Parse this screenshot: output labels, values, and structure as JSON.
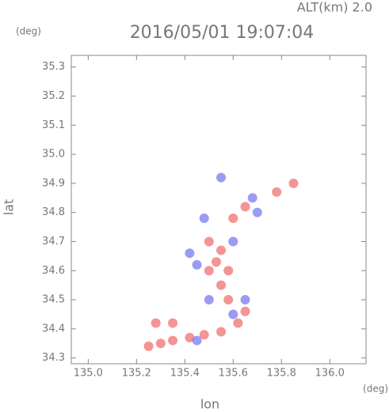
{
  "chart_data": {
    "type": "scatter",
    "title": "2016/05/01 19:07:04",
    "subtitle": "ALT(km) 2.0",
    "x_label": "lon",
    "y_label": "lat",
    "x_unit": "(deg)",
    "y_unit": "(deg)",
    "xlim": [
      134.93,
      136.15
    ],
    "ylim": [
      34.28,
      35.34
    ],
    "xticks": [
      {
        "value": 135,
        "label": "135.0"
      },
      135.2,
      135.4,
      135.6,
      135.8,
      {
        "value": 136,
        "label": "136.0"
      }
    ],
    "yticks": [
      34.3,
      34.4,
      34.5,
      34.6,
      34.7,
      34.8,
      34.9,
      {
        "value": 35,
        "label": "35.0"
      },
      35.1,
      35.2,
      35.3
    ],
    "grid": false,
    "series": [
      {
        "color": "#f07070",
        "x": [
          135.25,
          135.3,
          135.35,
          135.42,
          135.48,
          135.55,
          135.62,
          135.65,
          135.58,
          135.55,
          135.5,
          135.53,
          135.58,
          135.55,
          135.5,
          135.6,
          135.85,
          135.78,
          135.65,
          135.28,
          135.35
        ],
        "values": [
          34.34,
          34.35,
          34.36,
          34.37,
          34.38,
          34.39,
          34.42,
          34.46,
          34.5,
          34.55,
          34.6,
          34.63,
          34.6,
          34.67,
          34.7,
          34.78,
          34.9,
          34.87,
          34.82,
          34.42,
          34.42
        ]
      },
      {
        "color": "#7a7af0",
        "x": [
          135.45,
          135.5,
          135.6,
          135.65,
          135.45,
          135.55,
          135.68,
          135.48,
          135.7,
          135.42,
          135.6
        ],
        "values": [
          34.62,
          34.5,
          34.45,
          34.5,
          34.36,
          34.92,
          34.85,
          34.78,
          34.8,
          34.66,
          34.7
        ]
      }
    ]
  }
}
